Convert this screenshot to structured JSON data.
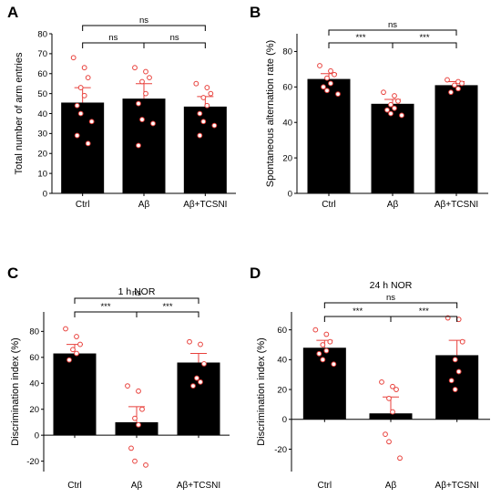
{
  "chart_data": [
    {
      "panel": "A",
      "type": "bar",
      "title": "",
      "ylabel": "Total number of arm entries",
      "ylim": [
        0,
        80
      ],
      "yticks": [
        0,
        10,
        20,
        30,
        40,
        50,
        60,
        70,
        80
      ],
      "categories": [
        "Ctrl",
        "Aβ",
        "Aβ+TCSNI"
      ],
      "values": [
        45.5,
        47.5,
        43.5
      ],
      "errors": [
        7.5,
        7.5,
        5
      ],
      "bar_color": "#000000",
      "point_color": "#e8413c",
      "points": [
        [
          68,
          63,
          58,
          53,
          49,
          44,
          40,
          36,
          29,
          25
        ],
        [
          63,
          61,
          58,
          56,
          50,
          45,
          37,
          35,
          24
        ],
        [
          55,
          53,
          50,
          48,
          44,
          40,
          36,
          34,
          29
        ]
      ],
      "significance": [
        {
          "from": 0,
          "to": 1,
          "label": "ns"
        },
        {
          "from": 1,
          "to": 2,
          "label": "ns"
        },
        {
          "from": 0,
          "to": 2,
          "label": "ns"
        }
      ]
    },
    {
      "panel": "B",
      "type": "bar",
      "title": "",
      "ylabel": "Spontaneous alternation rate (%)",
      "ylim": [
        0,
        90
      ],
      "yticks": [
        0,
        20,
        40,
        60,
        80
      ],
      "categories": [
        "Ctrl",
        "Aβ",
        "Aβ+TCSNI"
      ],
      "values": [
        64.5,
        50.5,
        61
      ],
      "errors": [
        3,
        2.5,
        2
      ],
      "bar_color": "#000000",
      "point_color": "#e8413c",
      "points": [
        [
          72,
          69,
          67,
          65,
          62,
          60,
          58,
          56
        ],
        [
          57,
          55,
          52,
          50,
          48,
          47,
          45,
          44
        ],
        [
          64,
          63,
          62,
          61,
          59,
          57
        ]
      ],
      "significance": [
        {
          "from": 0,
          "to": 1,
          "label": "***"
        },
        {
          "from": 1,
          "to": 2,
          "label": "***"
        },
        {
          "from": 0,
          "to": 2,
          "label": "ns"
        }
      ]
    },
    {
      "panel": "C",
      "type": "bar",
      "title": "1 h NOR",
      "ylabel": "Discrimination index (%)",
      "ylim": [
        -28,
        95
      ],
      "yticks": [
        -20,
        0,
        20,
        40,
        60,
        80
      ],
      "categories": [
        "Ctrl",
        "Aβ",
        "Aβ+TCSNI"
      ],
      "values": [
        63,
        10,
        56
      ],
      "errors": [
        7,
        12,
        7
      ],
      "bar_color": "#000000",
      "point_color": "#e8413c",
      "points": [
        [
          82,
          76,
          70,
          66,
          63,
          58
        ],
        [
          38,
          34,
          20,
          13,
          8,
          -10,
          -20,
          -23
        ],
        [
          72,
          70,
          55,
          44,
          41,
          38
        ]
      ],
      "significance": [
        {
          "from": 0,
          "to": 1,
          "label": "***"
        },
        {
          "from": 1,
          "to": 2,
          "label": "***"
        },
        {
          "from": 0,
          "to": 2,
          "label": "ns"
        }
      ]
    },
    {
      "panel": "D",
      "type": "bar",
      "title": "24 h NOR",
      "ylabel": "Discrimination index (%)",
      "ylim": [
        -35,
        72
      ],
      "yticks": [
        -20,
        0,
        20,
        40,
        60
      ],
      "categories": [
        "Ctrl",
        "Aβ",
        "Aβ+TCSNI"
      ],
      "values": [
        48,
        4,
        43
      ],
      "errors": [
        5,
        11,
        10
      ],
      "bar_color": "#000000",
      "point_color": "#e8413c",
      "points": [
        [
          60,
          57,
          52,
          50,
          46,
          44,
          40,
          37
        ],
        [
          25,
          22,
          20,
          14,
          5,
          -10,
          -15,
          -26
        ],
        [
          68,
          67,
          52,
          40,
          32,
          26,
          20
        ]
      ],
      "significance": [
        {
          "from": 0,
          "to": 1,
          "label": "***"
        },
        {
          "from": 1,
          "to": 2,
          "label": "***"
        },
        {
          "from": 0,
          "to": 2,
          "label": "ns"
        }
      ]
    }
  ]
}
